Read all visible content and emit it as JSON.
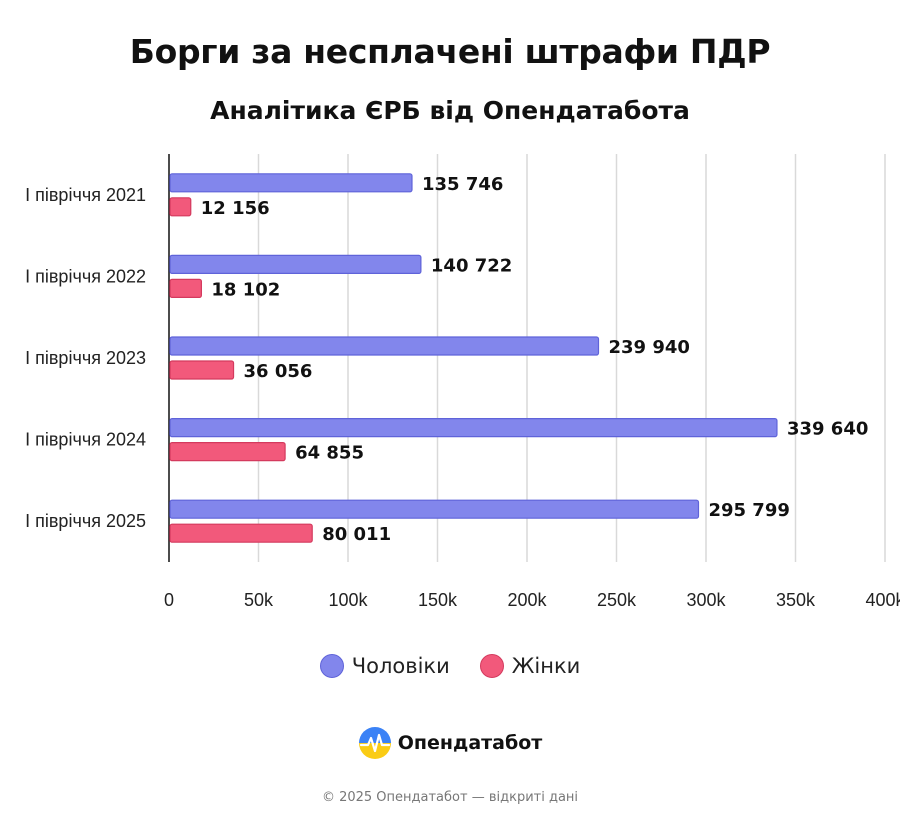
{
  "chart_data": {
    "type": "bar",
    "orientation": "horizontal",
    "title": "Борги за несплачені штрафи ПДР",
    "subtitle": "Аналітика ЄРБ від Опендатабота",
    "categories": [
      "І півріччя 2021",
      "І півріччя 2022",
      "І півріччя 2023",
      "І півріччя 2024",
      "І півріччя 2025"
    ],
    "series": [
      {
        "name": "Чоловіки",
        "color": "#8286ec",
        "border": "#5f63d9",
        "values": [
          135746,
          140722,
          239940,
          339640,
          295799
        ],
        "labels": [
          "135 746",
          "140 722",
          "239 940",
          "339 640",
          "295 799"
        ]
      },
      {
        "name": "Жінки",
        "color": "#f2597b",
        "border": "#d43a5e",
        "values": [
          12156,
          18102,
          36056,
          64855,
          80011
        ],
        "labels": [
          "12 156",
          "18 102",
          "36 056",
          "64 855",
          "80 011"
        ]
      }
    ],
    "xlim": [
      0,
      400000
    ],
    "xticks": [
      0,
      50000,
      100000,
      150000,
      200000,
      250000,
      300000,
      350000,
      400000
    ],
    "xtick_labels": [
      "0",
      "50k",
      "100k",
      "150k",
      "200k",
      "250k",
      "300k",
      "350k",
      "400k"
    ],
    "grid": true,
    "legend_position": "bottom"
  },
  "brand": {
    "name": "Опендатабот",
    "icon": "opendatabot-logo-icon",
    "colors": [
      "#3b82f6",
      "#facc15"
    ]
  },
  "footer": "© 2025 Опендатабот — відкриті дані"
}
